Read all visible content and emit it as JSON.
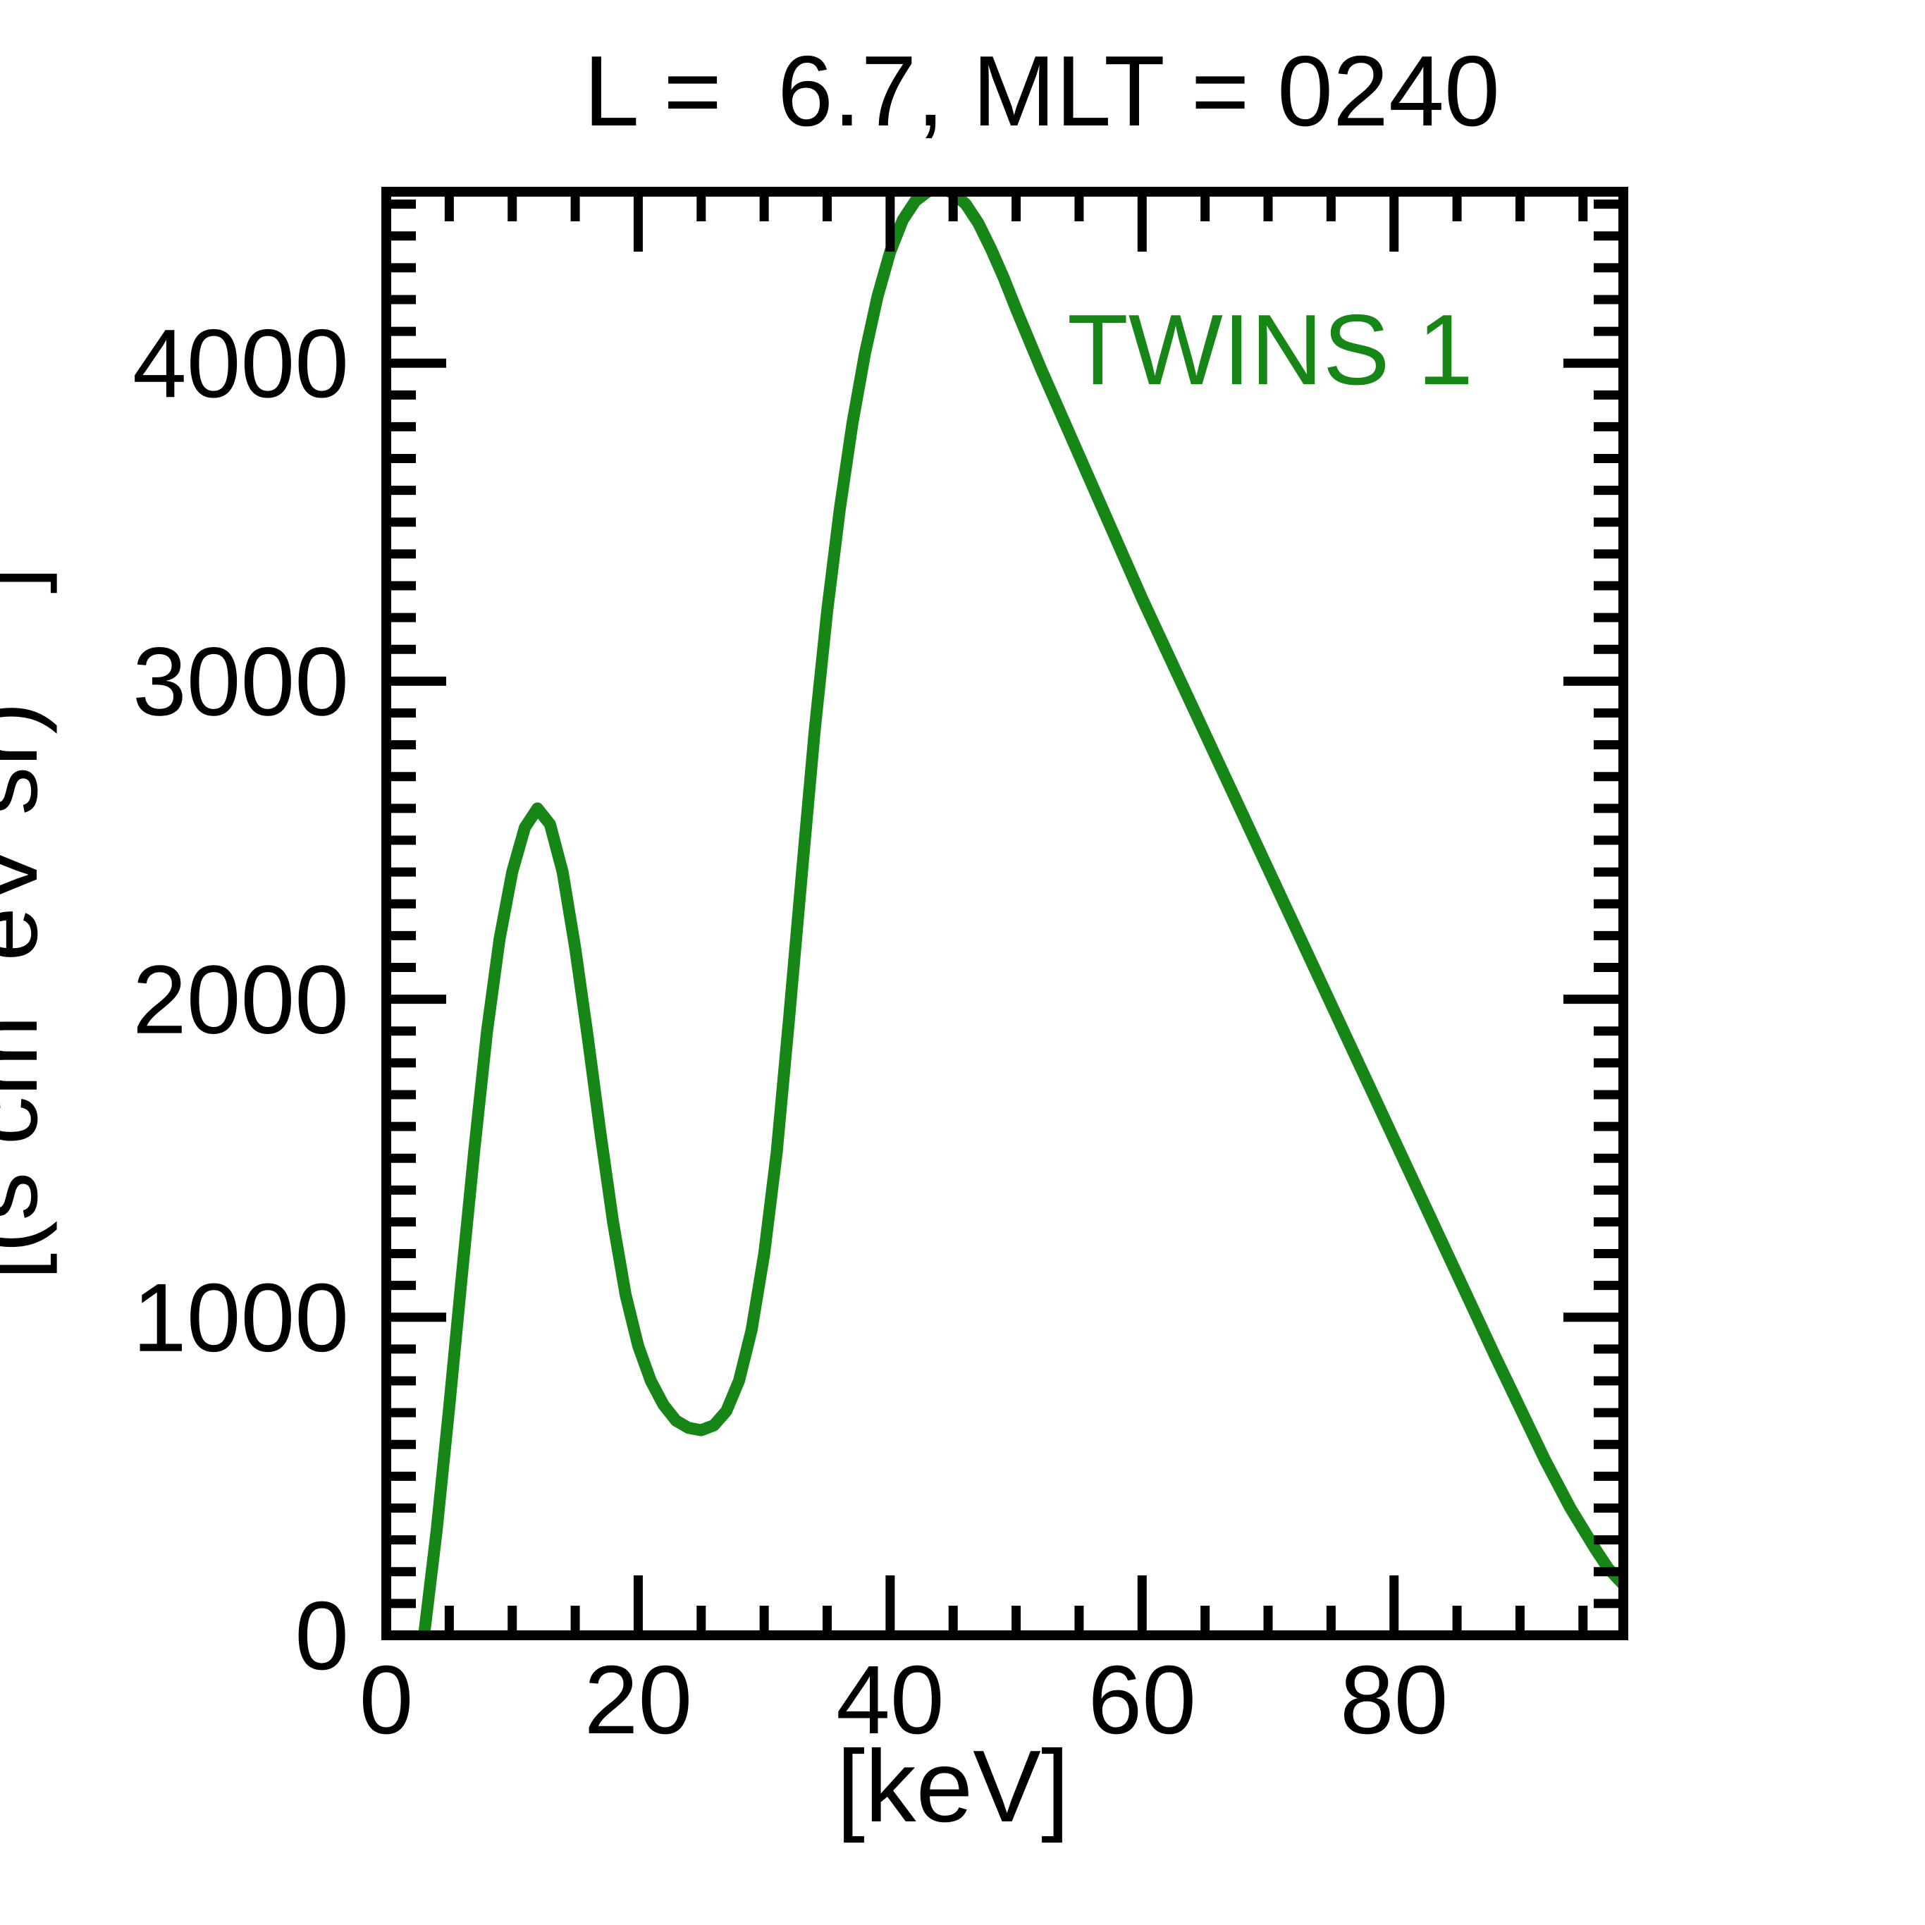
{
  "chart": {
    "title": "L =  6.7, MLT = 0240",
    "xlabel": "[keV]",
    "ylabel_visible": "[(s cm  eV sr)    ]",
    "legend": "TWINS 1",
    "colors": {
      "curve": "#168616",
      "legend_text": "#168616",
      "axis": "#000000",
      "text": "#000000",
      "background": "#ffffff"
    }
  },
  "chart_data": {
    "type": "line",
    "title": "L =  6.7, MLT = 0240",
    "xlabel": "[keV]",
    "ylabel": "[(s cm eV sr) ]",
    "legend_position": "top-right-inside",
    "grid": false,
    "x_axis": {
      "min": 0,
      "max": 98.2,
      "major_step": 20,
      "minor_step": 5,
      "tick_labels": [
        {
          "value": 0,
          "label": "0"
        },
        {
          "value": 20,
          "label": "20"
        },
        {
          "value": 40,
          "label": "40"
        },
        {
          "value": 60,
          "label": "60"
        },
        {
          "value": 80,
          "label": "80"
        }
      ]
    },
    "y_axis": {
      "min": 0,
      "max": 4539,
      "major_step": 1000,
      "minor_step": 100,
      "tick_labels": [
        {
          "value": 0,
          "label": "0"
        },
        {
          "value": 1000,
          "label": "1000"
        },
        {
          "value": 2000,
          "label": "2000"
        },
        {
          "value": 3000,
          "label": "3000"
        },
        {
          "value": 4000,
          "label": "4000"
        }
      ]
    },
    "series": [
      {
        "name": "TWINS 1",
        "color": "#168616",
        "points": [
          [
            3,
            0
          ],
          [
            4,
            330
          ],
          [
            5,
            720
          ],
          [
            6,
            1130
          ],
          [
            7,
            1530
          ],
          [
            8,
            1900
          ],
          [
            9,
            2190
          ],
          [
            10,
            2400
          ],
          [
            11,
            2540
          ],
          [
            12,
            2600
          ],
          [
            13,
            2550
          ],
          [
            14,
            2400
          ],
          [
            15,
            2160
          ],
          [
            16,
            1880
          ],
          [
            17,
            1580
          ],
          [
            18,
            1300
          ],
          [
            19,
            1070
          ],
          [
            20,
            910
          ],
          [
            21,
            800
          ],
          [
            22,
            725
          ],
          [
            23,
            675
          ],
          [
            24,
            652
          ],
          [
            25,
            645
          ],
          [
            26,
            660
          ],
          [
            27,
            705
          ],
          [
            28,
            800
          ],
          [
            29,
            960
          ],
          [
            30,
            1200
          ],
          [
            31,
            1520
          ],
          [
            32,
            1950
          ],
          [
            33,
            2400
          ],
          [
            34,
            2840
          ],
          [
            35,
            3220
          ],
          [
            36,
            3540
          ],
          [
            37,
            3810
          ],
          [
            38,
            4030
          ],
          [
            39,
            4210
          ],
          [
            40,
            4350
          ],
          [
            41,
            4450
          ],
          [
            42,
            4510
          ],
          [
            43,
            4540
          ],
          [
            44,
            4550
          ],
          [
            45,
            4535
          ],
          [
            46,
            4500
          ],
          [
            47,
            4440
          ],
          [
            48,
            4360
          ],
          [
            49,
            4270
          ],
          [
            50,
            4170
          ],
          [
            52,
            3980
          ],
          [
            54,
            3800
          ],
          [
            56,
            3620
          ],
          [
            58,
            3440
          ],
          [
            60,
            3260
          ],
          [
            62,
            3090
          ],
          [
            64,
            2920
          ],
          [
            66,
            2750
          ],
          [
            68,
            2580
          ],
          [
            70,
            2410
          ],
          [
            72,
            2240
          ],
          [
            74,
            2070
          ],
          [
            76,
            1900
          ],
          [
            78,
            1730
          ],
          [
            80,
            1560
          ],
          [
            82,
            1390
          ],
          [
            84,
            1220
          ],
          [
            86,
            1050
          ],
          [
            88,
            880
          ],
          [
            90,
            715
          ],
          [
            92,
            550
          ],
          [
            94,
            400
          ],
          [
            96,
            270
          ],
          [
            97,
            210
          ],
          [
            98.2,
            160
          ]
        ]
      }
    ]
  }
}
